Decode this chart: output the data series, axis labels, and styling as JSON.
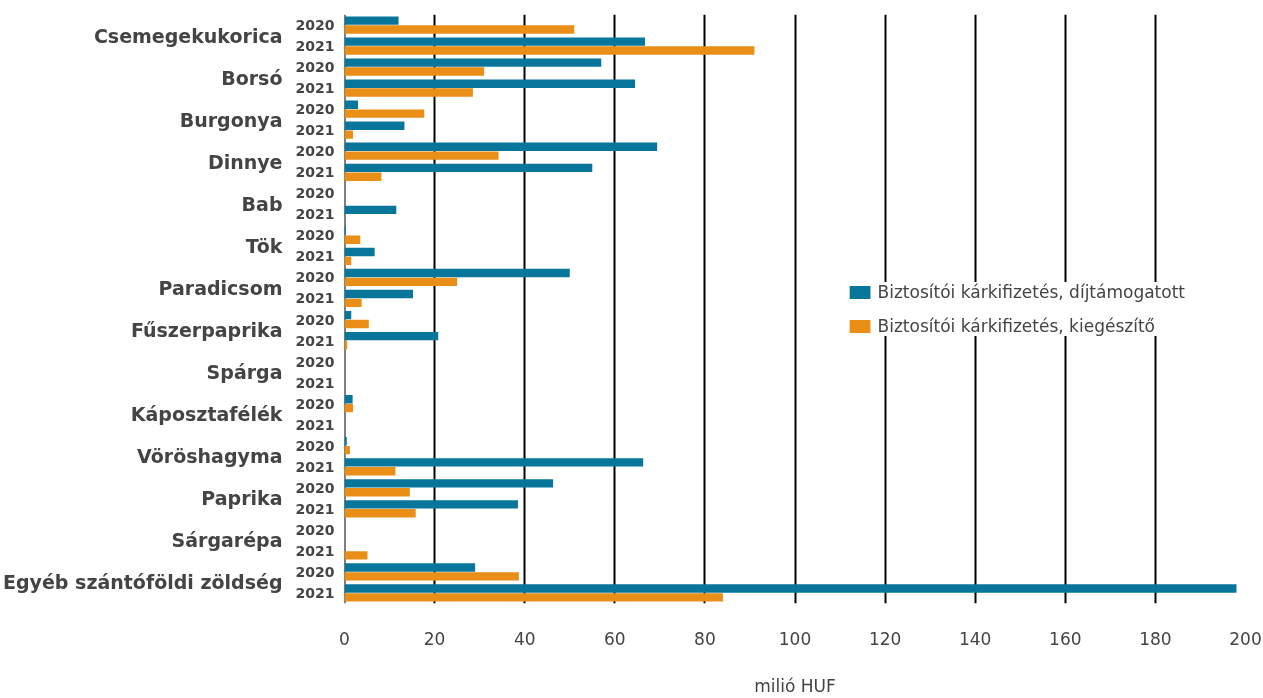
{
  "chart_data": {
    "type": "bar",
    "orientation": "horizontal",
    "xlabel": "milió HUF",
    "categories": [
      "2020",
      "2021",
      "2020",
      "2021",
      "2020",
      "2021",
      "2020",
      "2021",
      "2020",
      "2021",
      "2020",
      "2021",
      "2020",
      "2021",
      "2020",
      "2021",
      "2020",
      "2021",
      "2020",
      "2021",
      "2020",
      "2021",
      "2020",
      "2021",
      "2020",
      "2021",
      "2020",
      "2021"
    ],
    "annotations": [
      "Csemegekukorica",
      "Borsó",
      "Burgonya",
      "Dinnye",
      "Bab",
      "Tök",
      "Paradicsom",
      "Fűszerpaprika",
      "Spárga",
      "Káposztafélék",
      "Vöröshagyma",
      "Paprika",
      "Sárgarépa",
      "Egyéb szántóföldi zöldség"
    ],
    "series": [
      {
        "name": "Biztosítói kárkifizetés, díjtámogatott",
        "color": "#08759b",
        "values": [
          12.0,
          66.7,
          57,
          64.5,
          3,
          13.3,
          69.4,
          55,
          0,
          11.5,
          0.3,
          6.7,
          50,
          15.2,
          1.5,
          20.8,
          0,
          0,
          1.8,
          0,
          0.5,
          66.3,
          46.3,
          38.5,
          0,
          0,
          29,
          198
        ]
      },
      {
        "name": "Biztosítói kárkifizetés, kiegészítő",
        "color": "#e98e16",
        "values": [
          51,
          91,
          31,
          28.5,
          17.7,
          1.9,
          34.2,
          8.2,
          0,
          0,
          3.5,
          1.5,
          25,
          3.8,
          5.4,
          0.6,
          0,
          0,
          1.9,
          0,
          1.2,
          11.3,
          14.5,
          15.8,
          0,
          5.1,
          38.7,
          84
        ]
      }
    ],
    "xlim": [
      0,
      200
    ],
    "xticks": [
      0,
      20,
      40,
      60,
      80,
      100,
      120,
      140,
      160,
      180,
      200
    ],
    "grid": "x",
    "legend": "right"
  }
}
